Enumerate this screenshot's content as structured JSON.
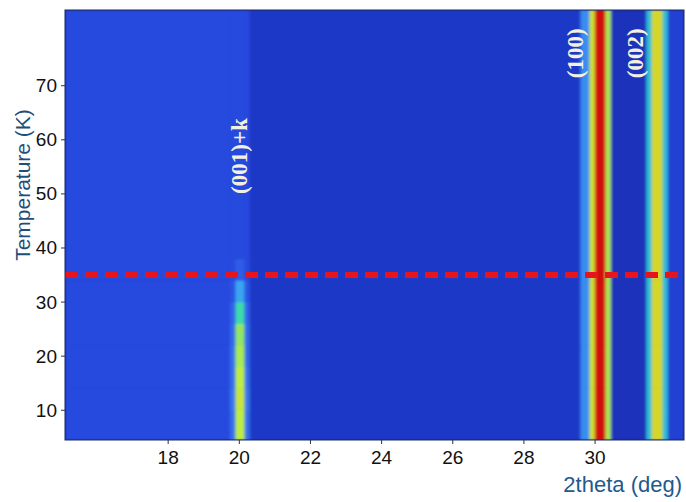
{
  "chart_data": {
    "type": "heatmap",
    "x_label": "2theta (deg)",
    "y_label": "Temperature (K)",
    "xlim": [
      15.1,
      32.5
    ],
    "ylim": [
      4.5,
      84
    ],
    "xticks": [
      18,
      20,
      22,
      24,
      26,
      28,
      30
    ],
    "yticks": [
      10,
      20,
      30,
      40,
      50,
      60,
      70
    ],
    "x_edges": [
      15.1,
      19.75,
      19.9,
      20.15,
      20.3,
      29.6,
      29.85,
      30.0,
      30.3,
      30.45,
      31.45,
      31.6,
      31.9,
      32.05,
      32.5
    ],
    "y_edges": [
      4.5,
      10,
      14,
      18,
      22,
      26,
      30,
      34,
      38,
      84
    ],
    "zlim": [
      0,
      100
    ],
    "cells": [
      [
        6,
        18,
        62,
        18,
        4,
        25,
        65,
        100,
        60,
        3,
        40,
        68,
        40,
        5
      ],
      [
        6,
        20,
        64,
        20,
        4,
        25,
        65,
        100,
        60,
        3,
        40,
        68,
        40,
        5
      ],
      [
        6,
        18,
        62,
        18,
        4,
        25,
        65,
        100,
        60,
        3,
        40,
        68,
        40,
        5
      ],
      [
        6,
        18,
        60,
        16,
        4,
        25,
        65,
        100,
        60,
        3,
        40,
        68,
        40,
        5
      ],
      [
        6,
        16,
        58,
        16,
        4,
        25,
        65,
        100,
        60,
        3,
        40,
        68,
        40,
        5
      ],
      [
        6,
        14,
        50,
        14,
        4,
        25,
        65,
        100,
        60,
        3,
        40,
        68,
        40,
        5
      ],
      [
        6,
        10,
        32,
        10,
        4,
        25,
        65,
        100,
        60,
        3,
        40,
        68,
        40,
        5
      ],
      [
        6,
        7,
        12,
        7,
        4,
        25,
        65,
        100,
        60,
        3,
        40,
        68,
        40,
        5
      ],
      [
        6,
        6,
        6,
        6,
        4,
        25,
        65,
        100,
        60,
        3,
        40,
        68,
        40,
        5
      ]
    ],
    "reference_lines": [
      {
        "y": 35,
        "color": "#e8141c",
        "line_style": "dashed"
      }
    ],
    "annotations": [
      {
        "text": "(001)+k",
        "x": 20.0,
        "y": 57
      },
      {
        "text": "(100)",
        "x": 29.45,
        "y": 76
      },
      {
        "text": "(002)",
        "x": 31.15,
        "y": 76
      }
    ]
  }
}
